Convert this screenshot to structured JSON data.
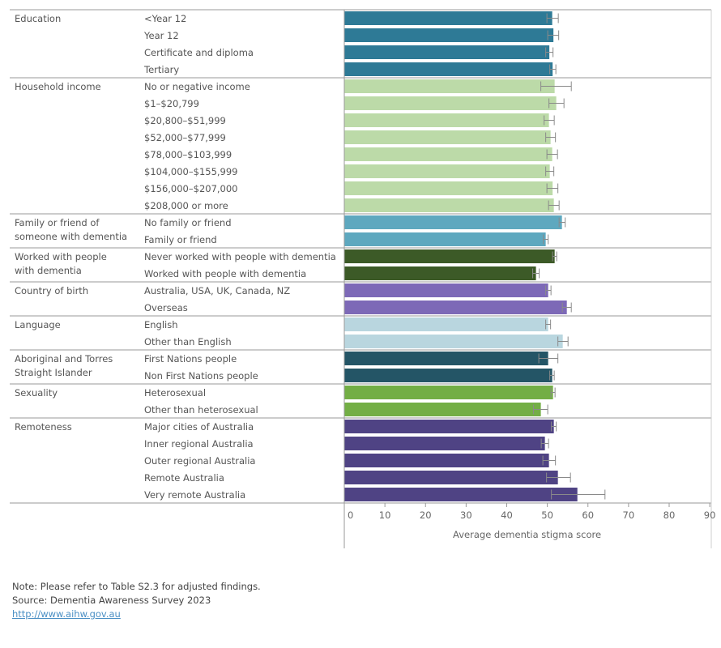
{
  "chart_data": {
    "type": "bar",
    "orientation": "horizontal",
    "xlabel": "Average dementia stigma score",
    "xlim": [
      0,
      90
    ],
    "xticks": [
      0,
      10,
      20,
      30,
      40,
      50,
      60,
      70,
      80,
      90
    ],
    "error_bars": true,
    "groups": [
      {
        "name": "Education",
        "color": "#2e7a96",
        "items": [
          {
            "label": "<Year 12",
            "value": 51.2,
            "lo": 49.9,
            "hi": 52.7
          },
          {
            "label": "Year 12",
            "value": 51.5,
            "lo": 50.1,
            "hi": 52.8
          },
          {
            "label": "Certificate and diploma",
            "value": 50.5,
            "lo": 49.6,
            "hi": 51.4
          },
          {
            "label": "Tertiary",
            "value": 51.3,
            "lo": 50.6,
            "hi": 52.1
          }
        ]
      },
      {
        "name": "Household income",
        "color": "#bcdaa8",
        "items": [
          {
            "label": "No or negative income",
            "value": 51.8,
            "lo": 48.4,
            "hi": 55.9
          },
          {
            "label": "$1–$20,799",
            "value": 52.2,
            "lo": 50.4,
            "hi": 54.1
          },
          {
            "label": "$20,800–$51,999",
            "value": 50.4,
            "lo": 49.2,
            "hi": 51.7
          },
          {
            "label": "$52,000–$77,999",
            "value": 50.8,
            "lo": 49.6,
            "hi": 52.0
          },
          {
            "label": "$78,000–$103,999",
            "value": 51.2,
            "lo": 49.9,
            "hi": 52.5
          },
          {
            "label": "$104,000–$155,999",
            "value": 50.6,
            "lo": 49.6,
            "hi": 51.6
          },
          {
            "label": "$156,000–$207,000",
            "value": 51.3,
            "lo": 49.9,
            "hi": 52.6
          },
          {
            "label": "$208,000 or more",
            "value": 51.6,
            "lo": 50.3,
            "hi": 52.9
          }
        ]
      },
      {
        "name": "Family or friend of someone with dementia",
        "color": "#5ea8bf",
        "items": [
          {
            "label": "No family or friend",
            "value": 53.6,
            "lo": 52.9,
            "hi": 54.4
          },
          {
            "label": "Family or friend",
            "value": 49.6,
            "lo": 49.0,
            "hi": 50.2
          }
        ]
      },
      {
        "name": "Worked with people with dementia",
        "color": "#3c5a27",
        "items": [
          {
            "label": "Never worked with people with dementia",
            "value": 51.8,
            "lo": 51.3,
            "hi": 52.3
          },
          {
            "label": "Worked with people with dementia",
            "value": 47.2,
            "lo": 46.4,
            "hi": 48.0
          }
        ]
      },
      {
        "name": "Country of birth",
        "color": "#7d69b7",
        "items": [
          {
            "label": "Australia, USA, UK, Canada, NZ",
            "value": 50.2,
            "lo": 49.6,
            "hi": 50.9
          },
          {
            "label": "Overseas",
            "value": 54.8,
            "lo": 53.7,
            "hi": 55.9
          }
        ]
      },
      {
        "name": "Language",
        "color": "#b9d6df",
        "items": [
          {
            "label": "English",
            "value": 50.2,
            "lo": 49.6,
            "hi": 50.8
          },
          {
            "label": "Other than English",
            "value": 53.8,
            "lo": 52.6,
            "hi": 55.1
          }
        ]
      },
      {
        "name": "Aboriginal and Torres Straight Islander",
        "color": "#245566",
        "items": [
          {
            "label": "First Nations people",
            "value": 50.2,
            "lo": 47.9,
            "hi": 52.6
          },
          {
            "label": "Non First Nations people",
            "value": 51.2,
            "lo": 50.6,
            "hi": 51.7
          }
        ]
      },
      {
        "name": "Sexuality",
        "color": "#73ae45",
        "items": [
          {
            "label": "Heterosexual",
            "value": 51.4,
            "lo": 50.9,
            "hi": 51.9
          },
          {
            "label": "Other than heterosexual",
            "value": 48.4,
            "lo": 46.6,
            "hi": 50.1
          }
        ]
      },
      {
        "name": "Remoteness",
        "color": "#4f4384",
        "items": [
          {
            "label": "Major cities of Australia",
            "value": 51.6,
            "lo": 51.0,
            "hi": 52.2
          },
          {
            "label": "Inner regional Australia",
            "value": 49.4,
            "lo": 48.5,
            "hi": 50.3
          },
          {
            "label": "Outer regional Australia",
            "value": 50.4,
            "lo": 48.9,
            "hi": 52.0
          },
          {
            "label": "Remote Australia",
            "value": 52.6,
            "lo": 49.8,
            "hi": 55.7
          },
          {
            "label": "Very remote Australia",
            "value": 57.4,
            "lo": 51.0,
            "hi": 64.2
          }
        ]
      }
    ]
  },
  "footer": {
    "note": "Note: Please refer to Table S2.3 for adjusted findings.",
    "source": "Source: Dementia Awareness Survey 2023",
    "link": "http://www.aihw.gov.au"
  }
}
